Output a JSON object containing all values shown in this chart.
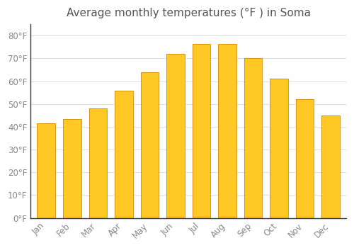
{
  "title": "Average monthly temperatures (°F ) in Soma",
  "months": [
    "Jan",
    "Feb",
    "Mar",
    "Apr",
    "May",
    "Jun",
    "Jul",
    "Aug",
    "Sep",
    "Oct",
    "Nov",
    "Dec"
  ],
  "values": [
    41.5,
    43.5,
    48,
    56,
    64,
    72,
    76.5,
    76.5,
    70,
    61,
    52,
    45
  ],
  "bar_color_top": "#FFC825",
  "bar_color_bottom": "#F59B00",
  "bar_edge_color": "#D4880A",
  "background_color": "#FFFFFF",
  "plot_bg_color": "#FFFFFF",
  "grid_color": "#E0E0E0",
  "tick_label_color": "#888888",
  "title_color": "#555555",
  "ylim": [
    0,
    85
  ],
  "yticks": [
    0,
    10,
    20,
    30,
    40,
    50,
    60,
    70,
    80
  ],
  "ytick_labels": [
    "0°F",
    "10°F",
    "20°F",
    "30°F",
    "40°F",
    "50°F",
    "60°F",
    "70°F",
    "80°F"
  ],
  "title_fontsize": 11,
  "tick_fontsize": 8.5,
  "bar_width": 0.7
}
